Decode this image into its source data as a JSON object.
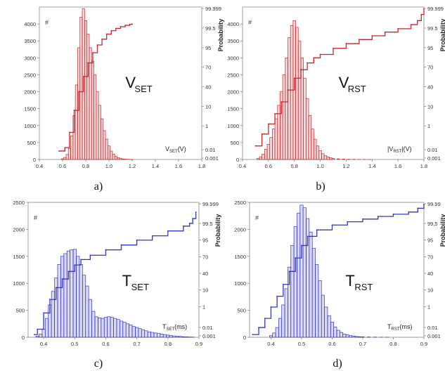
{
  "chart_data": [
    {
      "id": "a",
      "type": "bar",
      "caption": "a)",
      "big_label": {
        "main": "V",
        "sub": "SET"
      },
      "xlabel": {
        "main": "V",
        "sub": "SET",
        "tail": "(V)"
      },
      "ylabel_right": "Probability",
      "y_marker": "#",
      "color": "#c0282d",
      "xlim": [
        0.4,
        1.8
      ],
      "xticks": [
        "0.4",
        "0.6",
        "0.8",
        "1.0",
        "1.2",
        "1.4",
        "1.6",
        "1.8"
      ],
      "ylim": [
        0,
        4500
      ],
      "yticks": [
        "0",
        "500",
        "1000",
        "1500",
        "2000",
        "2500",
        "3000",
        "3500",
        "4000"
      ],
      "right_ticks": [
        "99.999",
        "99.5",
        "95",
        "70",
        "40",
        "10",
        "1",
        "0.01",
        "0.001"
      ],
      "hist_x": [
        0.6,
        0.62,
        0.64,
        0.66,
        0.68,
        0.7,
        0.72,
        0.74,
        0.76,
        0.78,
        0.8,
        0.82,
        0.84,
        0.86,
        0.88,
        0.9,
        0.92,
        0.94,
        0.96,
        0.98,
        1.0,
        1.02,
        1.04,
        1.06,
        1.08,
        1.1,
        1.12,
        1.14,
        1.16,
        1.18,
        1.2
      ],
      "hist_y": [
        20,
        60,
        150,
        320,
        700,
        1300,
        2200,
        3300,
        4200,
        4450,
        4100,
        3700,
        3300,
        2900,
        2500,
        2000,
        1600,
        1200,
        850,
        600,
        400,
        250,
        160,
        90,
        55,
        30,
        18,
        10,
        6,
        4,
        3
      ],
      "cdf_x": [
        0.57,
        0.62,
        0.66,
        0.7,
        0.74,
        0.78,
        0.82,
        0.86,
        0.9,
        0.94,
        0.98,
        1.02,
        1.06,
        1.1,
        1.14,
        1.18,
        1.2
      ],
      "cdf_y": [
        250,
        350,
        800,
        1450,
        2000,
        2450,
        2850,
        3150,
        3380,
        3550,
        3700,
        3800,
        3870,
        3920,
        3960,
        3990,
        4000
      ]
    },
    {
      "id": "b",
      "type": "bar",
      "caption": "b)",
      "big_label": {
        "main": "V",
        "sub": "RST"
      },
      "xlabel": {
        "main": "|V",
        "sub": "RST",
        "tail": "|(V)"
      },
      "ylabel_right": "Probability",
      "y_marker": "#",
      "color": "#c0282d",
      "xlim": [
        0.4,
        1.8
      ],
      "xticks": [
        "0.4",
        "0.6",
        "0.8",
        "1.0",
        "1.2",
        "1.4",
        "1.6",
        "1.8"
      ],
      "ylim": [
        0,
        4500
      ],
      "yticks": [
        "0",
        "500",
        "1000",
        "1500",
        "2000",
        "2500",
        "3000",
        "3500",
        "4000"
      ],
      "right_ticks": [
        "99.999",
        "99.5",
        "95",
        "70",
        "40",
        "10",
        "1",
        "0.01",
        "0.001"
      ],
      "hist_x": [
        0.52,
        0.54,
        0.56,
        0.58,
        0.6,
        0.62,
        0.64,
        0.66,
        0.68,
        0.7,
        0.72,
        0.74,
        0.76,
        0.78,
        0.8,
        0.82,
        0.84,
        0.86,
        0.88,
        0.9,
        0.92,
        0.94,
        0.96,
        0.98,
        1.0,
        1.02,
        1.04,
        1.06,
        1.08,
        1.1,
        1.14,
        1.18,
        1.22,
        1.26,
        1.3,
        1.34,
        1.38
      ],
      "hist_y": [
        30,
        80,
        160,
        300,
        450,
        650,
        900,
        1200,
        1600,
        2000,
        2500,
        3000,
        3600,
        3950,
        4100,
        3900,
        3500,
        3000,
        2400,
        1800,
        1300,
        900,
        600,
        400,
        260,
        170,
        110,
        75,
        50,
        35,
        20,
        12,
        8,
        5,
        3,
        2,
        1
      ],
      "cdf_x": [
        0.5,
        0.55,
        0.6,
        0.65,
        0.7,
        0.75,
        0.8,
        0.85,
        0.9,
        0.95,
        1.0,
        1.1,
        1.2,
        1.3,
        1.4,
        1.5,
        1.6,
        1.7,
        1.75,
        1.78,
        1.8
      ],
      "cdf_y": [
        400,
        750,
        1050,
        1350,
        1700,
        2050,
        2400,
        2650,
        2850,
        3000,
        3100,
        3280,
        3420,
        3540,
        3650,
        3760,
        3860,
        3980,
        4100,
        4280,
        4450
      ]
    },
    {
      "id": "c",
      "type": "bar",
      "caption": "c)",
      "big_label": {
        "main": "T",
        "sub": "SET"
      },
      "xlabel": {
        "main": "T",
        "sub": "SET",
        "tail": "(ms)"
      },
      "ylabel_right": "Probability",
      "y_marker": "#",
      "color": "#3434c4",
      "xlim": [
        0.35,
        0.9
      ],
      "xticks": [
        "0.4",
        "0.5",
        "0.6",
        "0.7",
        "0.8",
        "0.9"
      ],
      "xtick_values": [
        0.4,
        0.5,
        0.6,
        0.7,
        0.8,
        0.9
      ],
      "ylim": [
        0,
        2500
      ],
      "yticks": [
        "0",
        "500",
        "1000",
        "1500",
        "2000",
        "2500"
      ],
      "right_ticks": [
        "99.999",
        "99.5",
        "95",
        "70",
        "40",
        "10",
        "1",
        "0.01",
        "0.001"
      ],
      "hist_x": [
        0.38,
        0.39,
        0.4,
        0.41,
        0.42,
        0.43,
        0.44,
        0.45,
        0.46,
        0.47,
        0.48,
        0.49,
        0.5,
        0.51,
        0.52,
        0.53,
        0.54,
        0.55,
        0.56,
        0.57,
        0.58,
        0.59,
        0.6,
        0.61,
        0.62,
        0.63,
        0.64,
        0.65,
        0.66,
        0.67,
        0.68,
        0.69,
        0.7,
        0.71,
        0.72,
        0.73,
        0.74,
        0.75,
        0.76,
        0.77,
        0.78,
        0.79,
        0.8,
        0.81,
        0.82,
        0.83,
        0.84,
        0.85,
        0.86,
        0.87,
        0.88
      ],
      "hist_y": [
        20,
        60,
        150,
        350,
        600,
        850,
        1100,
        1350,
        1500,
        1550,
        1600,
        1620,
        1630,
        1500,
        1350,
        1150,
        950,
        700,
        480,
        380,
        360,
        350,
        370,
        380,
        370,
        350,
        330,
        300,
        280,
        250,
        230,
        200,
        180,
        160,
        140,
        120,
        100,
        90,
        80,
        70,
        60,
        50,
        40,
        30,
        25,
        20,
        15,
        10,
        8,
        5,
        3
      ],
      "cdf_x": [
        0.37,
        0.38,
        0.4,
        0.42,
        0.44,
        0.46,
        0.48,
        0.5,
        0.52,
        0.55,
        0.6,
        0.65,
        0.7,
        0.75,
        0.8,
        0.85,
        0.87,
        0.88,
        0.89
      ],
      "cdf_y": [
        50,
        150,
        450,
        700,
        920,
        1080,
        1220,
        1340,
        1440,
        1520,
        1620,
        1710,
        1800,
        1880,
        1970,
        2060,
        2110,
        2200,
        2320
      ]
    },
    {
      "id": "d",
      "type": "bar",
      "caption": "d)",
      "big_label": {
        "main": "T",
        "sub": "RST"
      },
      "xlabel": {
        "main": "T",
        "sub": "RST",
        "tail": "(ms)"
      },
      "ylabel_right": "Probability",
      "y_marker": "#",
      "color": "#3434c4",
      "xlim": [
        0.33,
        0.9
      ],
      "xticks": [
        "0.4",
        "0.5",
        "0.6",
        "0.7",
        "0.8",
        "0.9"
      ],
      "xtick_values": [
        0.4,
        0.5,
        0.6,
        0.7,
        0.8,
        0.9
      ],
      "ylim": [
        0,
        2500
      ],
      "yticks": [
        "0",
        "500",
        "1000",
        "1500",
        "2000",
        "2500"
      ],
      "right_ticks": [
        "99.99",
        "99,5",
        "95",
        "70",
        "40",
        "10",
        "1",
        "0.01",
        "0.001"
      ],
      "hist_x": [
        0.4,
        0.41,
        0.42,
        0.43,
        0.44,
        0.45,
        0.46,
        0.47,
        0.48,
        0.49,
        0.5,
        0.51,
        0.52,
        0.53,
        0.54,
        0.55,
        0.56,
        0.57,
        0.58,
        0.59,
        0.6,
        0.61,
        0.62,
        0.63,
        0.64,
        0.65,
        0.66,
        0.67,
        0.68,
        0.69,
        0.7,
        0.72,
        0.74,
        0.76,
        0.78
      ],
      "hist_y": [
        30,
        80,
        180,
        350,
        600,
        900,
        1300,
        1700,
        2050,
        2300,
        2450,
        2400,
        2200,
        1950,
        1650,
        1350,
        1050,
        780,
        560,
        400,
        280,
        190,
        130,
        90,
        60,
        45,
        30,
        22,
        15,
        10,
        8,
        5,
        3,
        2,
        1
      ],
      "cdf_x": [
        0.34,
        0.36,
        0.38,
        0.4,
        0.42,
        0.44,
        0.46,
        0.48,
        0.5,
        0.52,
        0.55,
        0.6,
        0.65,
        0.7,
        0.75,
        0.8,
        0.85,
        0.88,
        0.9
      ],
      "cdf_y": [
        50,
        180,
        350,
        560,
        760,
        980,
        1220,
        1470,
        1700,
        1870,
        1990,
        2080,
        2140,
        2190,
        2240,
        2280,
        2320,
        2390,
        2460
      ]
    }
  ]
}
